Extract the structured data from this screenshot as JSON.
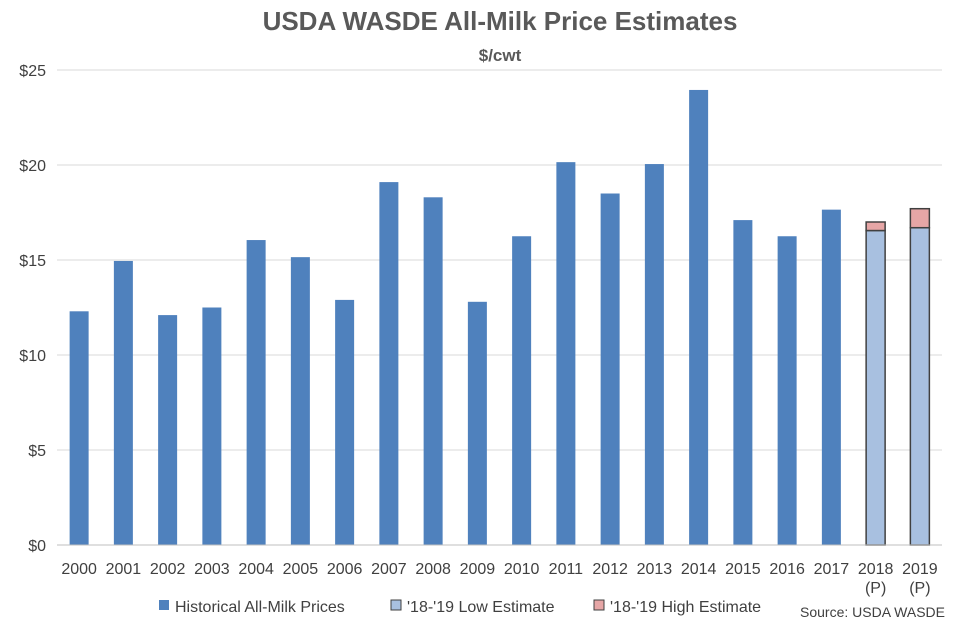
{
  "chart_data": {
    "type": "bar",
    "title": "USDA WASDE All-Milk Price Estimates",
    "subtitle": "$/cwt",
    "xlabel": "",
    "ylabel": "",
    "ylim": [
      0,
      25
    ],
    "y_ticks": [
      "$0",
      "$5",
      "$10",
      "$15",
      "$20",
      "$25"
    ],
    "y_tick_values": [
      0,
      5,
      10,
      15,
      20,
      25
    ],
    "grid": true,
    "legend_position": "bottom",
    "categories": [
      {
        "line1": "2000",
        "line2": ""
      },
      {
        "line1": "2001",
        "line2": ""
      },
      {
        "line1": "2002",
        "line2": ""
      },
      {
        "line1": "2003",
        "line2": ""
      },
      {
        "line1": "2004",
        "line2": ""
      },
      {
        "line1": "2005",
        "line2": ""
      },
      {
        "line1": "2006",
        "line2": ""
      },
      {
        "line1": "2007",
        "line2": ""
      },
      {
        "line1": "2008",
        "line2": ""
      },
      {
        "line1": "2009",
        "line2": ""
      },
      {
        "line1": "2010",
        "line2": ""
      },
      {
        "line1": "2011",
        "line2": ""
      },
      {
        "line1": "2012",
        "line2": ""
      },
      {
        "line1": "2013",
        "line2": ""
      },
      {
        "line1": "2014",
        "line2": ""
      },
      {
        "line1": "2015",
        "line2": ""
      },
      {
        "line1": "2016",
        "line2": ""
      },
      {
        "line1": "2017",
        "line2": ""
      },
      {
        "line1": "2018",
        "line2": "(P)"
      },
      {
        "line1": "2019",
        "line2": "(P)"
      }
    ],
    "series": [
      {
        "name": "Historical All-Milk Prices",
        "color": "#4F81BD",
        "values": [
          12.3,
          14.95,
          12.1,
          12.5,
          16.05,
          15.15,
          12.9,
          19.1,
          18.3,
          12.8,
          16.25,
          20.15,
          18.5,
          20.05,
          23.95,
          17.1,
          16.25,
          17.65,
          null,
          null
        ]
      },
      {
        "name": "'18-'19 Low Estimate",
        "color": "#A8C0E0",
        "values": [
          null,
          null,
          null,
          null,
          null,
          null,
          null,
          null,
          null,
          null,
          null,
          null,
          null,
          null,
          null,
          null,
          null,
          null,
          16.55,
          16.7
        ]
      },
      {
        "name": "'18-'19 High Estimate",
        "color": "#E6A6A6",
        "values": [
          null,
          null,
          null,
          null,
          null,
          null,
          null,
          null,
          null,
          null,
          null,
          null,
          null,
          null,
          null,
          null,
          null,
          null,
          0.45,
          1.0
        ]
      }
    ],
    "source": "Source: USDA WASDE"
  }
}
